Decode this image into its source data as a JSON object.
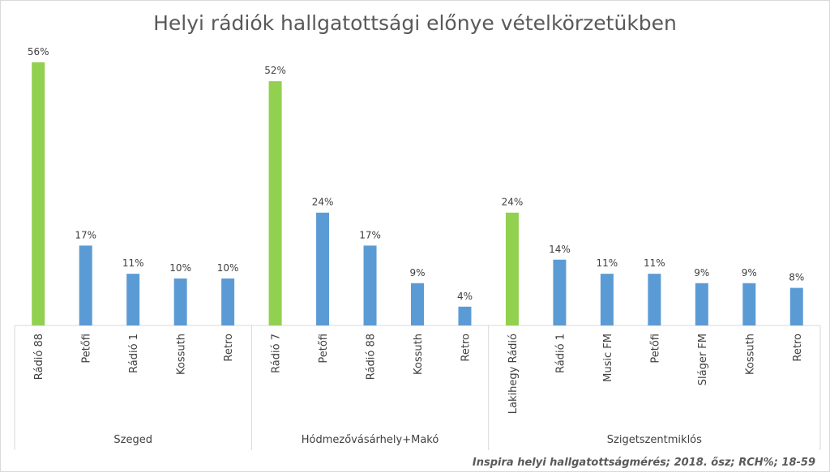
{
  "chart_data": {
    "type": "bar",
    "title": "Helyi rádiók hallgatottsági előnye vételkörzetükben",
    "xlabel": "",
    "ylabel": "",
    "ylim": [
      0,
      56
    ],
    "grid": false,
    "legend": "none",
    "value_suffix": "%",
    "colors": {
      "local": "#92d050",
      "other": "#5b9bd5"
    },
    "groups": [
      {
        "name": "Szeged",
        "bars": [
          {
            "label": "Rádió 88",
            "value": 56,
            "display": "56%",
            "kind": "local"
          },
          {
            "label": "Petőfi",
            "value": 17,
            "display": "17%",
            "kind": "other"
          },
          {
            "label": "Rádió 1",
            "value": 11,
            "display": "11%",
            "kind": "other"
          },
          {
            "label": "Kossuth",
            "value": 10,
            "display": "10%",
            "kind": "other"
          },
          {
            "label": "Retro",
            "value": 10,
            "display": "10%",
            "kind": "other"
          }
        ]
      },
      {
        "name": "Hódmezővásárhely+Makó",
        "bars": [
          {
            "label": "Rádió 7",
            "value": 52,
            "display": "52%",
            "kind": "local"
          },
          {
            "label": "Petőfi",
            "value": 24,
            "display": "24%",
            "kind": "other"
          },
          {
            "label": "Rádió 88",
            "value": 17,
            "display": "17%",
            "kind": "other"
          },
          {
            "label": "Kossuth",
            "value": 9,
            "display": "9%",
            "kind": "other"
          },
          {
            "label": "Retro",
            "value": 4,
            "display": "4%",
            "kind": "other"
          }
        ]
      },
      {
        "name": "Szigetszentmiklós",
        "bars": [
          {
            "label": "Lakihegy Rádió",
            "value": 24,
            "display": "24%",
            "kind": "local"
          },
          {
            "label": "Rádió 1",
            "value": 14,
            "display": "14%",
            "kind": "other"
          },
          {
            "label": "Music FM",
            "value": 11,
            "display": "11%",
            "kind": "other"
          },
          {
            "label": "Petőfi",
            "value": 11,
            "display": "11%",
            "kind": "other"
          },
          {
            "label": "Sláger FM",
            "value": 9,
            "display": "9%",
            "kind": "other"
          },
          {
            "label": "Kossuth",
            "value": 9,
            "display": "9%",
            "kind": "other"
          },
          {
            "label": "Retro",
            "value": 8,
            "display": "8%",
            "kind": "other"
          }
        ]
      }
    ],
    "source": "Inspira helyi hallgatottságmérés; 2018. ősz; RCH%; 18-59"
  }
}
